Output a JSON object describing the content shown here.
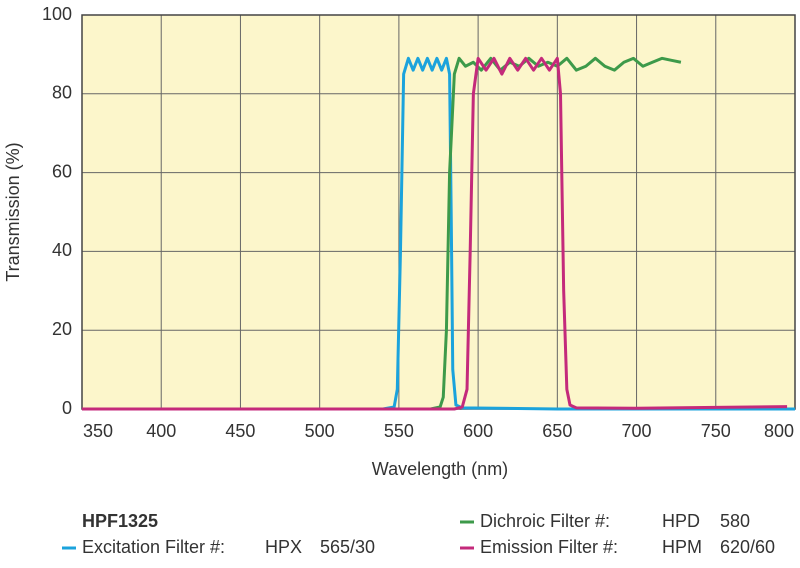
{
  "chart_data": {
    "type": "line",
    "x_label": "Wavelength (nm)",
    "y_label": "Transmission (%)",
    "xlim": [
      350,
      800
    ],
    "xticks": [
      350,
      400,
      450,
      500,
      550,
      600,
      650,
      700,
      750,
      800
    ],
    "ylim": [
      0,
      100
    ],
    "yticks": [
      0,
      20,
      40,
      60,
      80,
      100
    ],
    "grid": true,
    "legend_title": "HPF1325",
    "series": [
      {
        "name": "Excitation Filter #:",
        "code": "HPX",
        "spec": "565/30",
        "color": "#1ba3dc",
        "x": [
          350,
          540,
          547,
          549,
          551,
          553,
          556,
          559,
          562,
          565,
          568,
          571,
          574,
          577,
          580,
          582,
          583,
          584,
          586,
          590,
          650,
          800
        ],
        "values": [
          0,
          0,
          0.5,
          5,
          40,
          85,
          89,
          86,
          89,
          86,
          89,
          86,
          89,
          86,
          89,
          85,
          50,
          10,
          1,
          0.3,
          0,
          0
        ]
      },
      {
        "name": "Dichroic Filter #:",
        "code": "HPD",
        "spec": "580",
        "color": "#3d9a4a",
        "x": [
          350,
          570,
          576,
          578,
          580,
          582,
          585,
          588,
          592,
          597,
          602,
          608,
          614,
          620,
          626,
          632,
          638,
          644,
          650,
          656,
          662,
          668,
          674,
          680,
          686,
          692,
          698,
          704,
          710,
          716,
          722,
          728
        ],
        "values": [
          0,
          0,
          0.5,
          3,
          20,
          60,
          85,
          89,
          87,
          88,
          86,
          89,
          86,
          88,
          87,
          89,
          87,
          88,
          87,
          89,
          86,
          87,
          89,
          87,
          86,
          88,
          89,
          87,
          88,
          89,
          88.5,
          88
        ]
      },
      {
        "name": "Emission Filter #:",
        "code": "HPM",
        "spec": "620/60",
        "color": "#c42a7b",
        "x": [
          350,
          585,
          590,
          593,
          595,
          597,
          600,
          605,
          610,
          615,
          620,
          625,
          630,
          635,
          640,
          645,
          650,
          652,
          654,
          656,
          658,
          662,
          700,
          750,
          795
        ],
        "values": [
          0,
          0,
          0.5,
          5,
          40,
          80,
          89,
          86,
          89,
          85,
          89,
          86,
          89,
          86,
          89,
          86,
          89,
          80,
          30,
          5,
          1,
          0.3,
          0.2,
          0.4,
          0.6
        ]
      }
    ]
  }
}
